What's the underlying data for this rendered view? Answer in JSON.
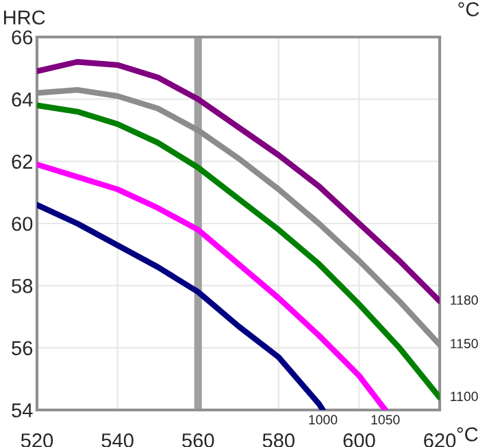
{
  "chart_data": {
    "type": "line",
    "ylabel": "HRC",
    "xlabel": "°C",
    "annotations": [
      "°C"
    ],
    "xlim": [
      520,
      620
    ],
    "ylim": [
      54,
      66
    ],
    "xticks": [
      520,
      540,
      560,
      580,
      600,
      620
    ],
    "yticks": [
      54,
      56,
      58,
      60,
      62,
      64,
      66
    ],
    "grid": true,
    "marker": "none",
    "line_style": "solid",
    "ref_lines": [
      {
        "axis": "x",
        "value": 560,
        "color": "#a0a0a0"
      }
    ],
    "series": [
      {
        "name": "1180",
        "color": "#800080",
        "x": [
          520,
          530,
          540,
          550,
          560,
          570,
          580,
          590,
          600,
          610,
          620
        ],
        "values": [
          64.9,
          65.2,
          65.1,
          64.7,
          64.0,
          63.1,
          62.2,
          61.2,
          60.0,
          58.8,
          57.5
        ]
      },
      {
        "name": "1150",
        "color": "#8c8c8c",
        "x": [
          520,
          530,
          540,
          550,
          560,
          570,
          580,
          590,
          600,
          610,
          620
        ],
        "values": [
          64.2,
          64.3,
          64.1,
          63.7,
          63.0,
          62.1,
          61.1,
          60.0,
          58.8,
          57.5,
          56.1
        ]
      },
      {
        "name": "1100",
        "color": "#008000",
        "x": [
          520,
          530,
          540,
          550,
          560,
          570,
          580,
          590,
          600,
          610,
          620
        ],
        "values": [
          63.8,
          63.6,
          63.2,
          62.6,
          61.8,
          60.8,
          59.8,
          58.7,
          57.4,
          56.0,
          54.4
        ]
      },
      {
        "name": "1050",
        "color": "#ff00ff",
        "x": [
          520,
          530,
          540,
          550,
          560,
          570,
          580,
          590,
          600,
          606.5
        ],
        "values": [
          61.9,
          61.5,
          61.1,
          60.5,
          59.8,
          58.7,
          57.6,
          56.4,
          55.1,
          54.0
        ]
      },
      {
        "name": "1000",
        "color": "#000080",
        "x": [
          520,
          530,
          540,
          550,
          560,
          570,
          580,
          590,
          591
        ],
        "values": [
          60.6,
          60.0,
          59.3,
          58.6,
          57.8,
          56.7,
          55.7,
          54.2,
          54.0
        ]
      }
    ]
  }
}
